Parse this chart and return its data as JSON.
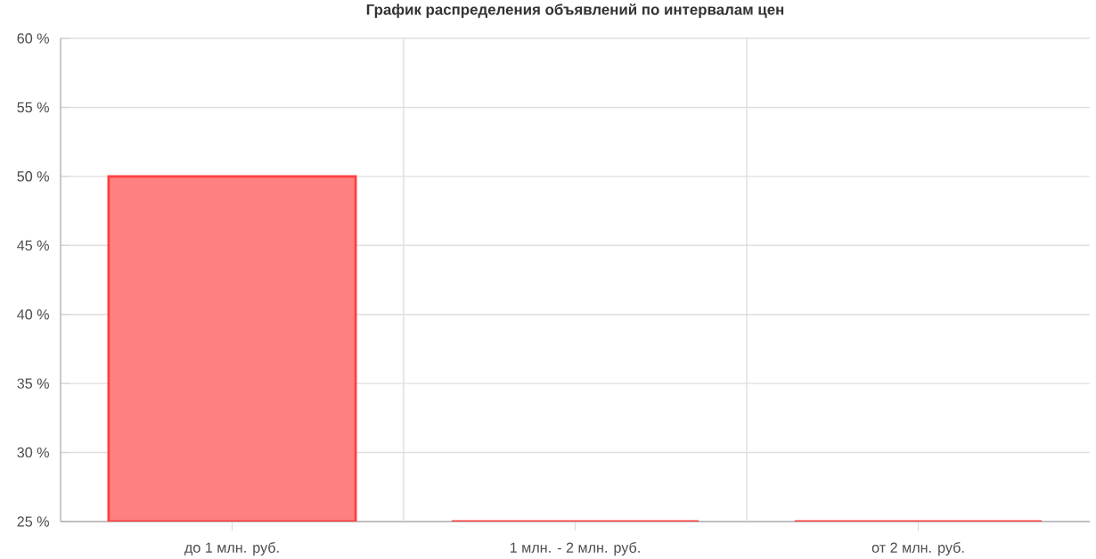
{
  "chart_data": {
    "type": "bar",
    "title": "График распределения объявлений по интервалам цен",
    "categories": [
      "до 1 млн. руб.",
      "1 млн. - 2 млн. руб.",
      "от 2 млн. руб."
    ],
    "values": [
      50,
      25,
      25
    ],
    "color": "#ff8080",
    "ylim": [
      25,
      60
    ],
    "yticks": [
      {
        "value": 25,
        "label": "25 %"
      },
      {
        "value": 30,
        "label": "30 %"
      },
      {
        "value": 35,
        "label": "35 %"
      },
      {
        "value": 40,
        "label": "40 %"
      },
      {
        "value": 45,
        "label": "45 %"
      },
      {
        "value": 50,
        "label": "50 %"
      },
      {
        "value": 55,
        "label": "55 %"
      },
      {
        "value": 60,
        "label": "60 %"
      }
    ],
    "grid": true
  }
}
